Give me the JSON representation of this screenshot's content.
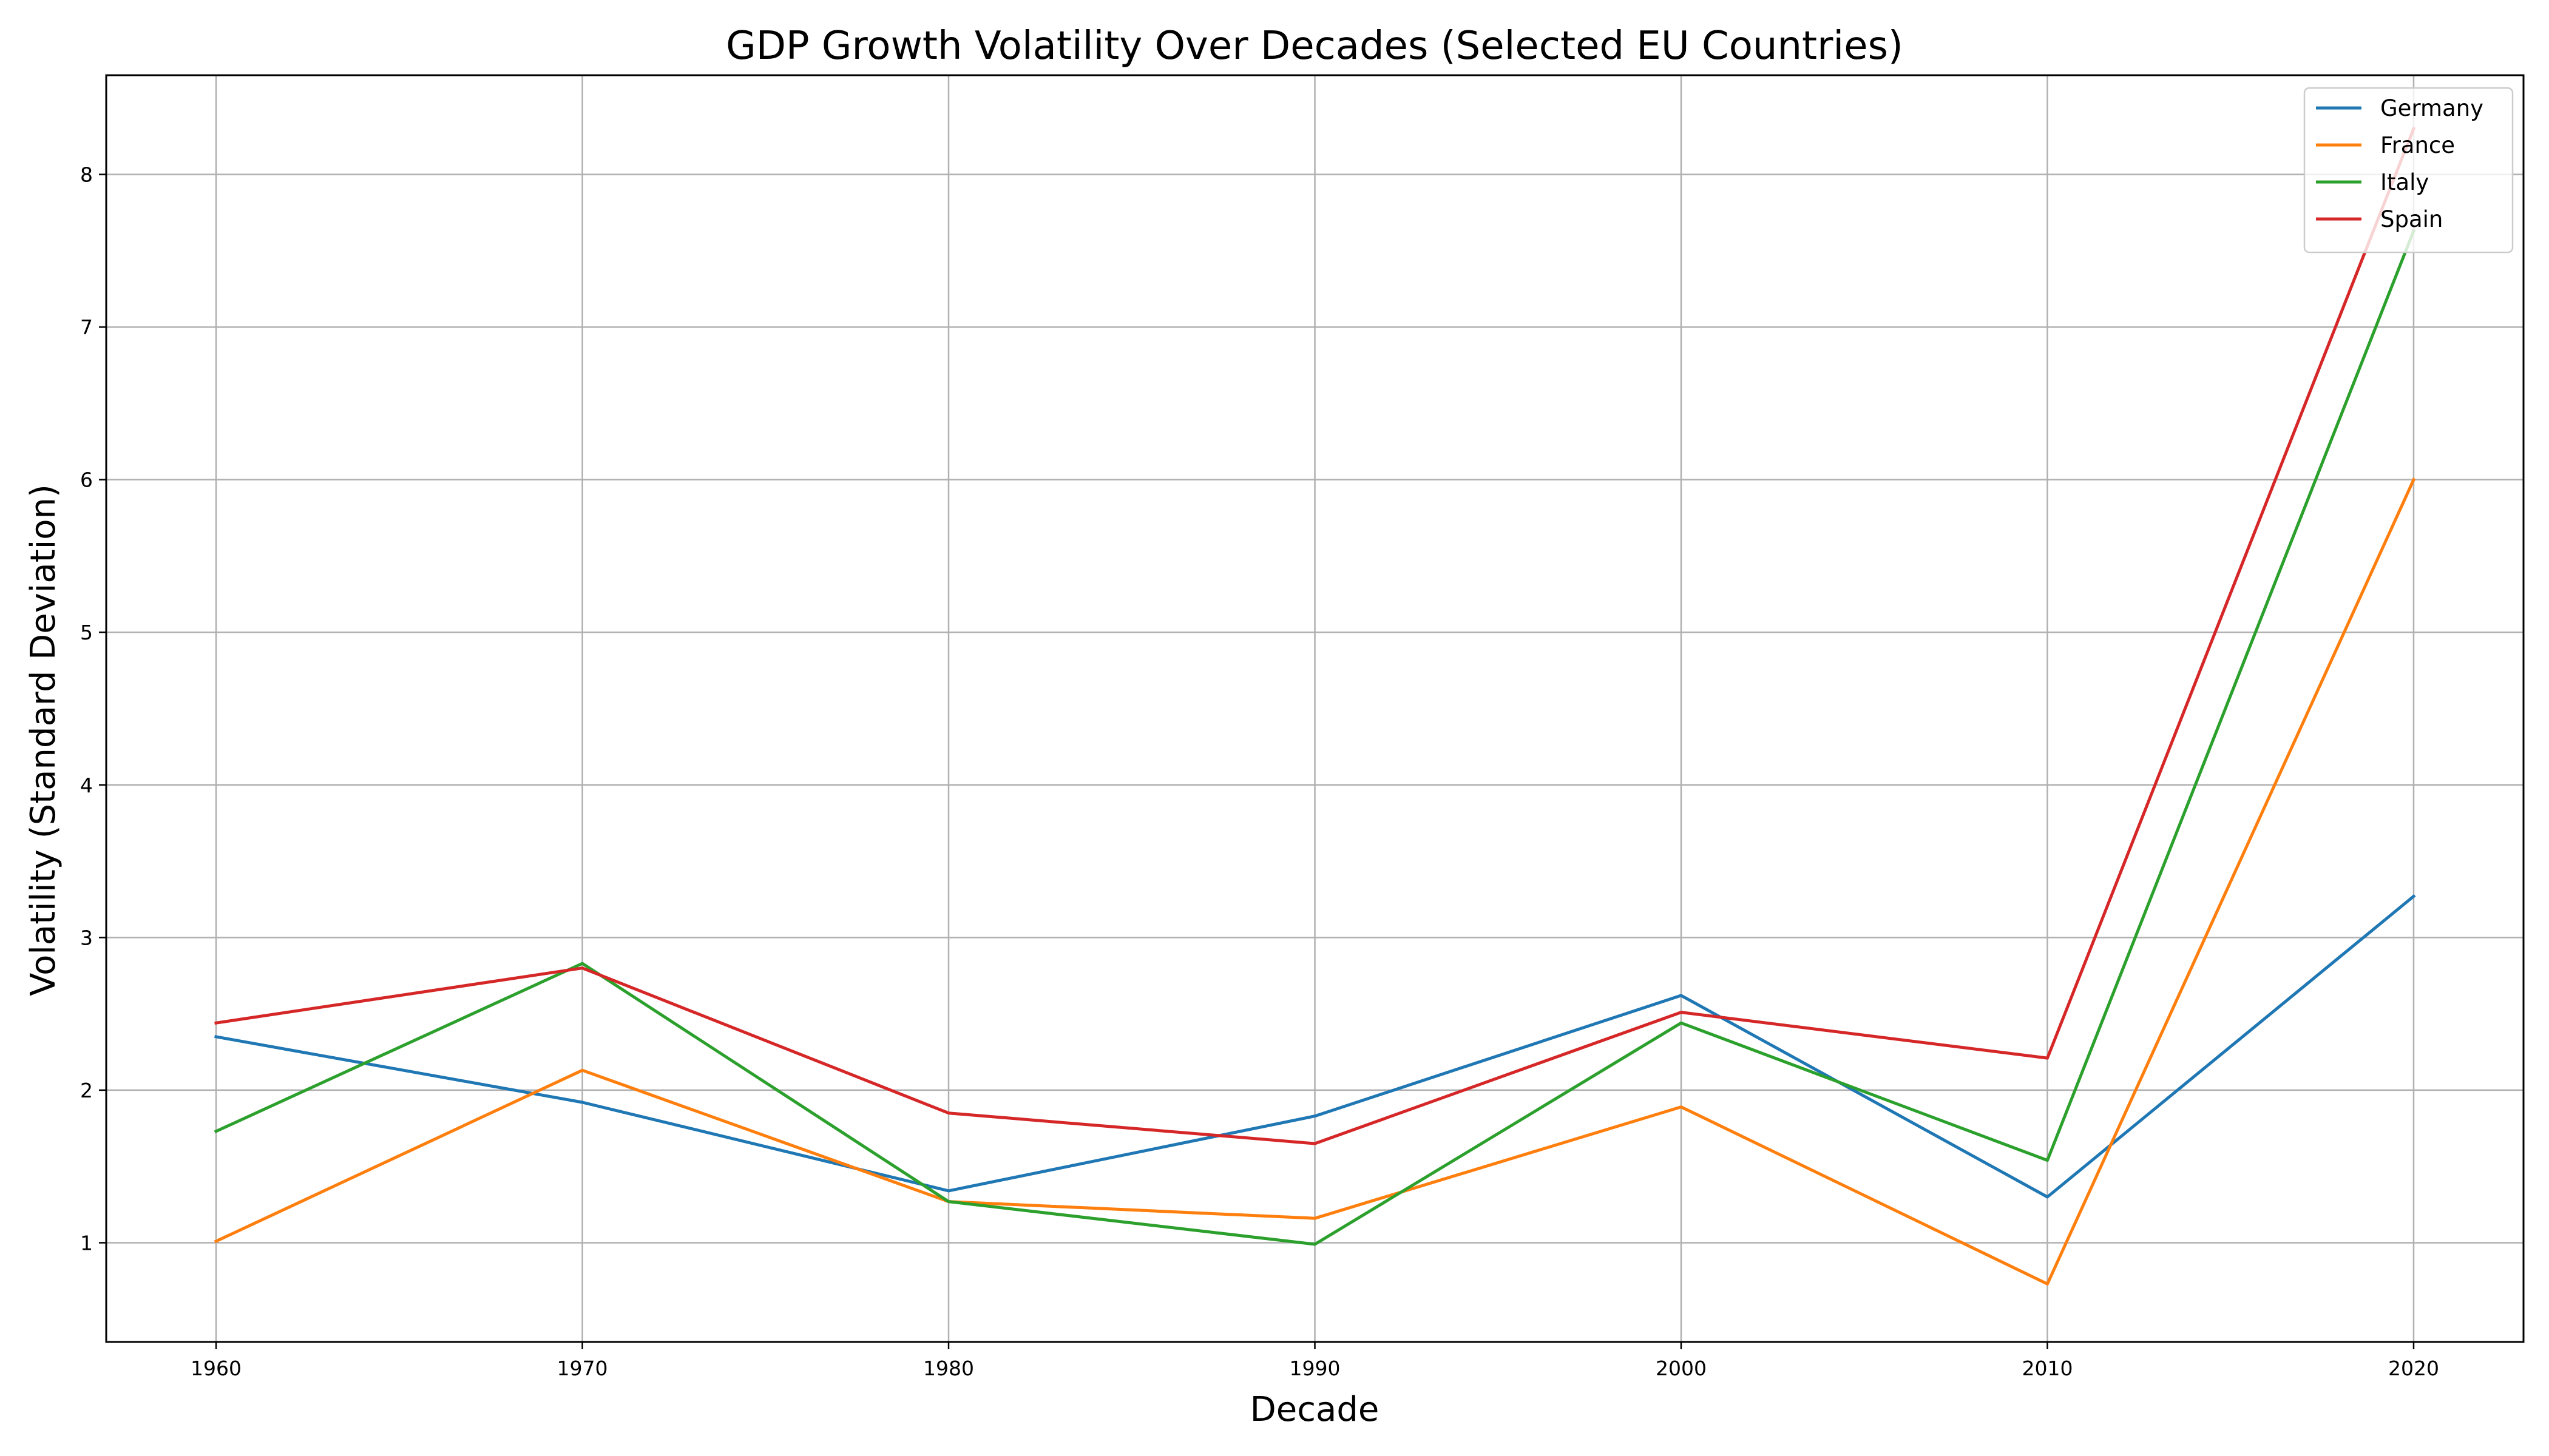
{
  "chart_data": {
    "type": "line",
    "title": "GDP Growth Volatility Over Decades (Selected EU Countries)",
    "xlabel": "Decade",
    "ylabel": "Volatility (Standard Deviation)",
    "x": [
      1960,
      1970,
      1980,
      1990,
      2000,
      2010,
      2020
    ],
    "xlim": [
      1957,
      2023
    ],
    "ylim": [
      0.35,
      8.65
    ],
    "xticks": [
      "1960",
      "1970",
      "1980",
      "1990",
      "2000",
      "2010",
      "2020"
    ],
    "yticks": [
      "1",
      "2",
      "3",
      "4",
      "5",
      "6",
      "7",
      "8"
    ],
    "grid": true,
    "legend_position": "top-right",
    "series": [
      {
        "name": "Germany",
        "color": "#1f77b4",
        "values": [
          2.35,
          1.92,
          1.34,
          1.83,
          2.62,
          1.3,
          3.27
        ]
      },
      {
        "name": "France",
        "color": "#ff7f0e",
        "values": [
          1.01,
          2.13,
          1.27,
          1.16,
          1.89,
          0.73,
          6.0
        ]
      },
      {
        "name": "Italy",
        "color": "#2ca02c",
        "values": [
          1.73,
          2.83,
          1.27,
          0.99,
          2.44,
          1.54,
          7.63
        ]
      },
      {
        "name": "Spain",
        "color": "#d62728",
        "values": [
          2.44,
          2.8,
          1.85,
          1.65,
          2.51,
          2.21,
          8.3
        ]
      }
    ]
  }
}
